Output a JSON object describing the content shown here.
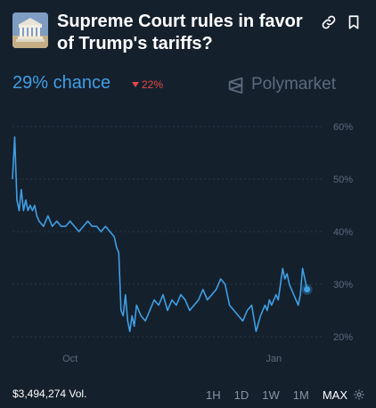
{
  "market": {
    "title": "Supreme Court rules in favor of Trump's tariffs?",
    "chance_label": "29% chance",
    "delta_label": "22%",
    "brand_name": "Polymarket"
  },
  "icons": {
    "thumbnail": "supreme-court-building-image",
    "link": "link-icon",
    "bookmark": "bookmark-icon",
    "brand_logo": "polymarket-logo",
    "delta_direction": "down-triangle-icon",
    "settings": "gear-icon"
  },
  "colors": {
    "background": "#15202d",
    "line": "#3f9fe4",
    "down": "#e64848",
    "muted": "#5b6b7c"
  },
  "footer": {
    "volume": "$3,494,274 Vol.",
    "ranges": [
      "1H",
      "1D",
      "1W",
      "1M",
      "MAX"
    ],
    "selected_range": "MAX"
  },
  "chart_data": {
    "type": "line",
    "title": "",
    "xlabel": "",
    "ylabel": "",
    "ylim": [
      20,
      60
    ],
    "y_ticks": [
      "20%",
      "30%",
      "40%",
      "50%",
      "60%"
    ],
    "x_ticks": [
      {
        "label": "Oct",
        "x": 26
      },
      {
        "label": "Jan",
        "x": 118
      }
    ],
    "grid": "horizontal dashed",
    "series": [
      {
        "name": "",
        "x": [
          0,
          1,
          2,
          3,
          4,
          5,
          6,
          7,
          8,
          9,
          10,
          11,
          12,
          14,
          16,
          18,
          20,
          22,
          24,
          26,
          28,
          30,
          32,
          34,
          36,
          38,
          40,
          42,
          44,
          46,
          47,
          48,
          49,
          50,
          51,
          52,
          53,
          54,
          55,
          56,
          58,
          60,
          62,
          64,
          66,
          68,
          70,
          72,
          74,
          76,
          78,
          80,
          82,
          84,
          86,
          88,
          90,
          92,
          94,
          96,
          98,
          100,
          102,
          104,
          106,
          108,
          110,
          112,
          114,
          115,
          116,
          117,
          118,
          119,
          120,
          121,
          122,
          123,
          124,
          125,
          126,
          127,
          128,
          129,
          130,
          131,
          132,
          133
        ],
        "y": [
          50,
          58,
          46,
          44,
          48,
          44,
          46,
          44,
          45,
          44,
          45,
          43,
          42,
          41,
          43,
          41,
          42,
          41,
          41,
          42,
          41,
          40,
          41,
          42,
          41,
          41,
          40,
          41,
          40,
          39,
          37,
          36,
          25,
          24,
          28,
          23,
          21,
          24,
          22,
          26,
          24,
          23,
          25,
          27,
          26,
          28,
          25,
          27,
          26,
          28,
          27,
          25,
          26,
          27,
          29,
          27,
          28,
          29,
          31,
          30,
          26,
          25,
          24,
          23,
          25,
          26,
          21,
          24,
          26,
          25,
          27,
          26,
          27,
          28,
          27,
          30,
          33,
          31,
          32,
          30,
          29,
          28,
          27,
          26,
          28,
          33,
          31,
          29
        ]
      }
    ],
    "x_range": [
      0,
      140
    ],
    "last_value": 29
  }
}
